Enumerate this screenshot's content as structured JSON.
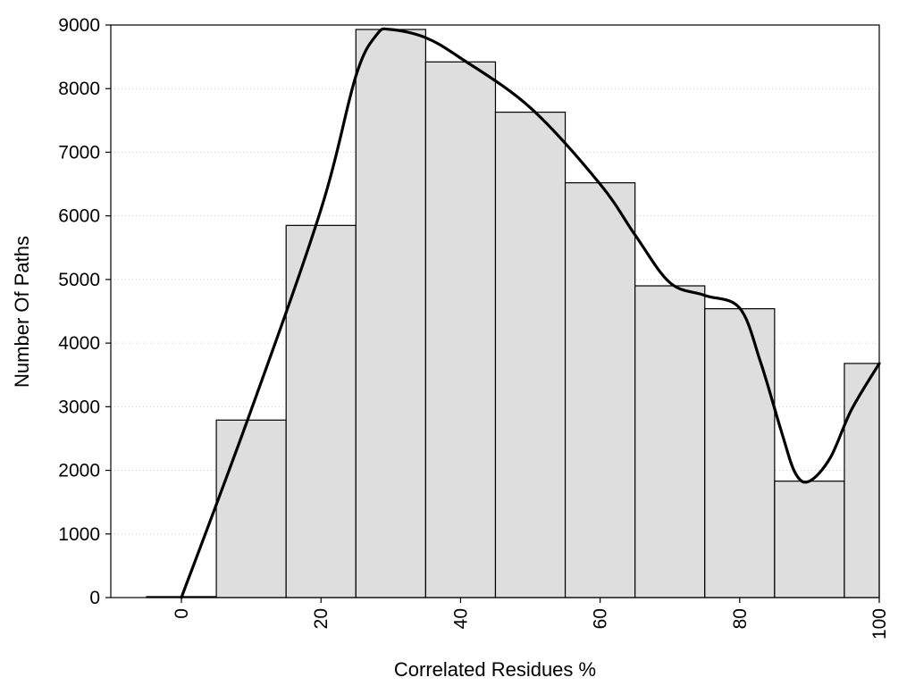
{
  "chart_data": {
    "type": "bar",
    "title": "",
    "xlabel": "Correlated Residues %",
    "ylabel": "Number Of Paths",
    "bin_centers": [
      0,
      10,
      20,
      30,
      40,
      50,
      60,
      70,
      80,
      90,
      100
    ],
    "values": [
      15,
      2790,
      5850,
      8930,
      8420,
      7630,
      6520,
      4900,
      4540,
      1830,
      3680
    ],
    "xlim": [
      -10,
      100
    ],
    "ylim": [
      0,
      9000
    ],
    "x_ticks": [
      0,
      20,
      40,
      60,
      80,
      100
    ],
    "y_ticks": [
      0,
      1000,
      2000,
      3000,
      4000,
      5000,
      6000,
      7000,
      8000,
      9000
    ],
    "grid": "horizontal dotted",
    "series": [
      {
        "type": "line",
        "x": [
          0,
          10,
          20,
          25,
          28,
          30,
          35,
          40,
          50,
          60,
          65,
          70,
          75,
          80,
          83,
          86,
          88,
          90,
          93,
          96,
          100
        ],
        "values": [
          0,
          2950,
          6100,
          8200,
          8850,
          8930,
          8800,
          8480,
          7700,
          6500,
          5700,
          4950,
          4750,
          4550,
          3700,
          2600,
          1950,
          1830,
          2200,
          2950,
          3680
        ]
      }
    ],
    "colors": {
      "bar_fill": "#dedede",
      "bar_stroke": "#000000",
      "curve": "#000000"
    }
  }
}
